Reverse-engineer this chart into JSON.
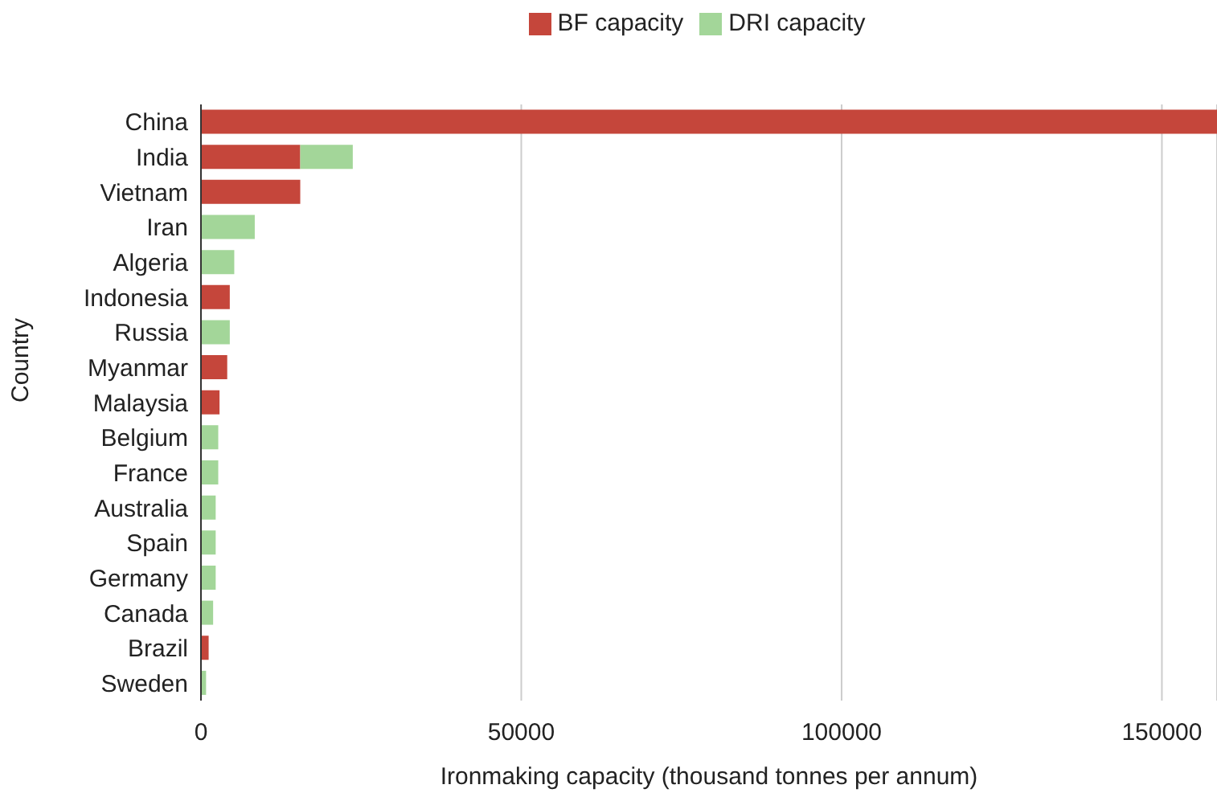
{
  "chart_data": {
    "type": "bar",
    "orientation": "horizontal",
    "stacked": true,
    "xlabel": "Ironmaking capacity (thousand tonnes per annum)",
    "ylabel": "Country",
    "categories": [
      "China",
      "India",
      "Vietnam",
      "Iran",
      "Algeria",
      "Indonesia",
      "Russia",
      "Myanmar",
      "Malaysia",
      "Belgium",
      "France",
      "Australia",
      "Spain",
      "Germany",
      "Canada",
      "Brazil",
      "Sweden"
    ],
    "series": [
      {
        "name": "BF capacity",
        "color": "#c5463b",
        "values": [
          158600,
          15500,
          15500,
          null,
          null,
          4500,
          null,
          4100,
          2900,
          null,
          null,
          null,
          null,
          null,
          null,
          1200,
          null
        ]
      },
      {
        "name": "DRI capacity",
        "color": "#a3d699",
        "values": [
          null,
          8200,
          null,
          8400,
          5200,
          null,
          4500,
          null,
          null,
          2700,
          2700,
          2300,
          2300,
          2300,
          1900,
          null,
          800
        ]
      }
    ],
    "xlim": [
      0,
      158600
    ],
    "xticks": [
      0,
      50000,
      100000,
      150000
    ],
    "grid": "x",
    "legend": "top"
  }
}
